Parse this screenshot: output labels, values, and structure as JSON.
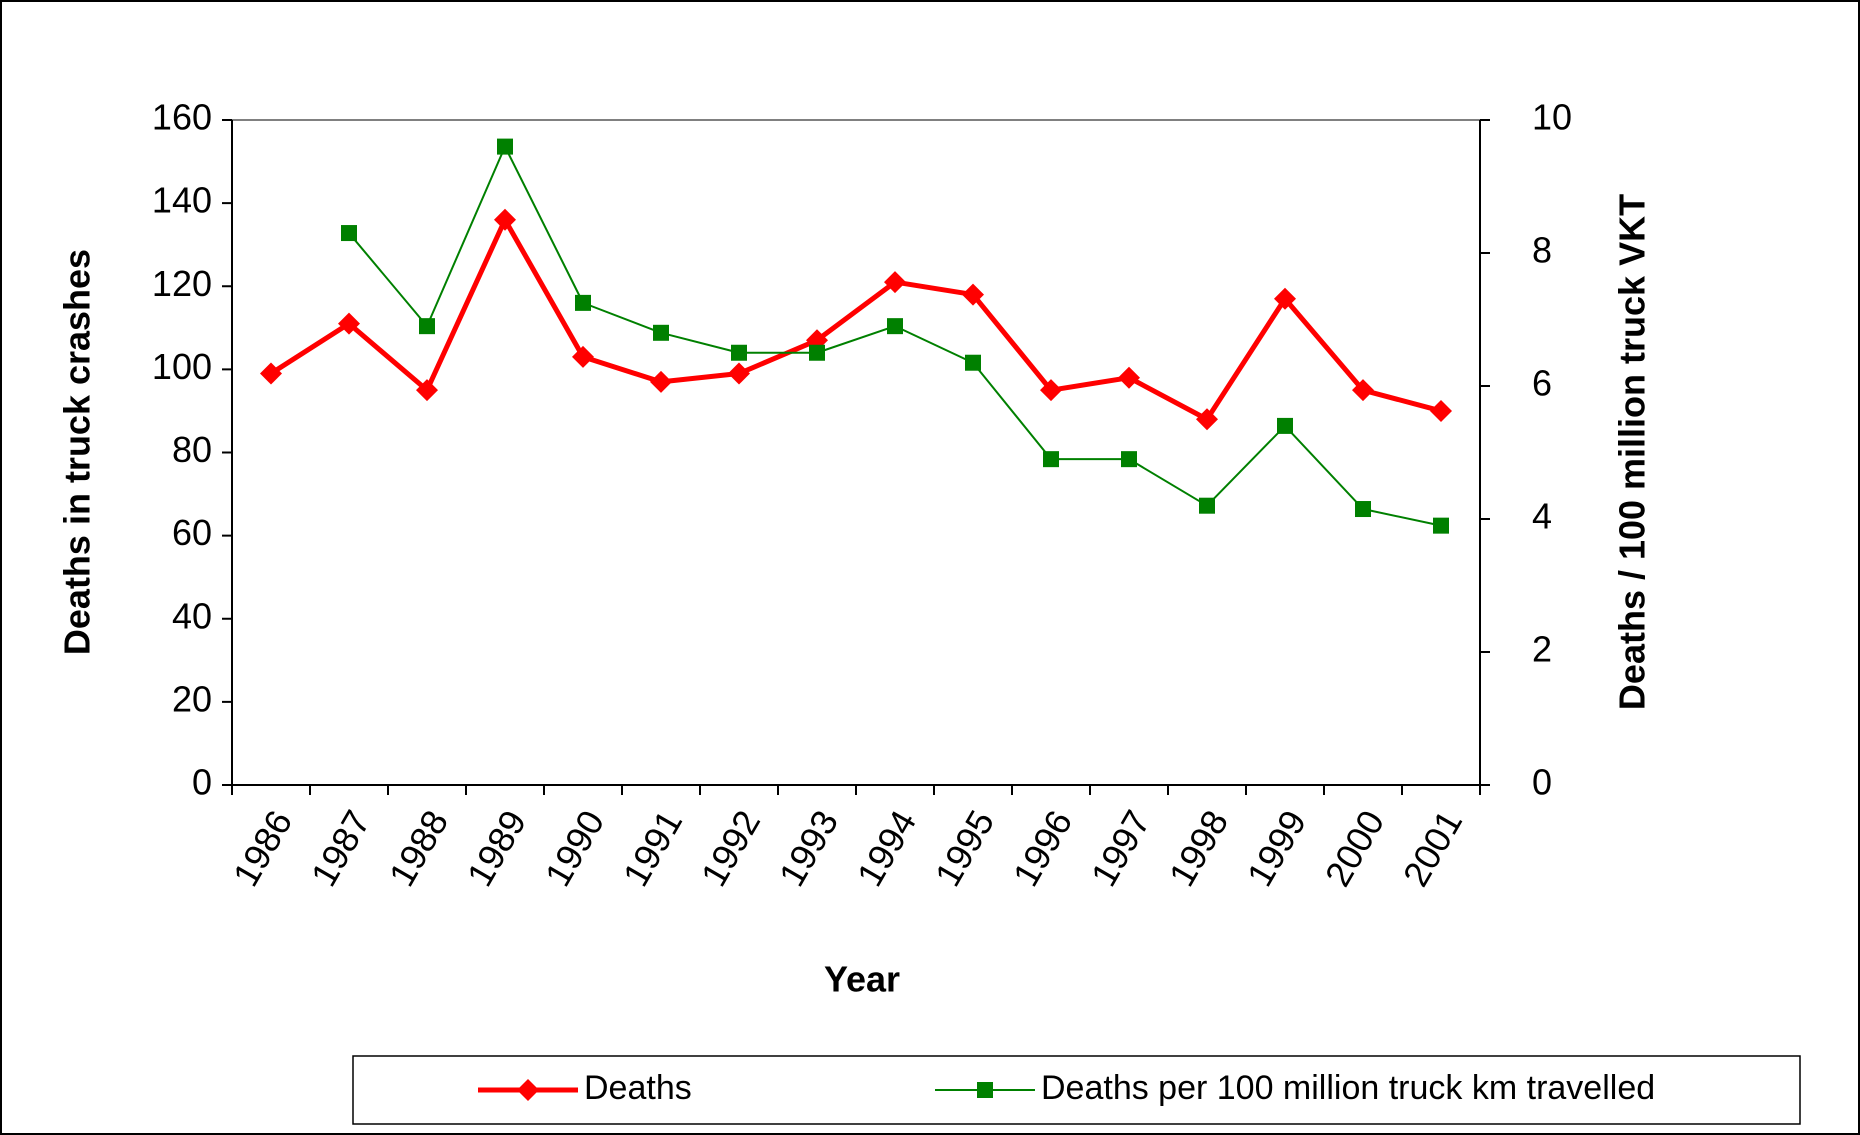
{
  "chart_data": {
    "type": "line",
    "x_label": "Year",
    "y_label": "Deaths in truck crashes",
    "y2_label": "Deaths / 100 million truck VKT",
    "categories": [
      "1986",
      "1987",
      "1988",
      "1989",
      "1990",
      "1991",
      "1992",
      "1993",
      "1994",
      "1995",
      "1996",
      "1997",
      "1998",
      "1999",
      "2000",
      "2001"
    ],
    "series": [
      {
        "name": "Deaths",
        "color": "#ff0000",
        "marker": "diamond",
        "axis": "y",
        "values": [
          99,
          111,
          95,
          136,
          103,
          97,
          99,
          107,
          121,
          118,
          95,
          98,
          88,
          117,
          95,
          90
        ]
      },
      {
        "name": "Deaths per 100 million truck km travelled",
        "color": "#008000",
        "marker": "square",
        "axis": "y2",
        "values": [
          null,
          8.3,
          6.9,
          9.6,
          7.25,
          6.8,
          6.5,
          6.5,
          6.9,
          6.35,
          4.9,
          4.9,
          4.2,
          5.4,
          4.15,
          3.9
        ]
      }
    ],
    "ylim": [
      0,
      160
    ],
    "yticks": [
      0,
      20,
      40,
      60,
      80,
      100,
      120,
      140,
      160
    ],
    "y2lim": [
      0,
      10
    ],
    "y2ticks": [
      0,
      2,
      4,
      6,
      8,
      10
    ],
    "grid": false,
    "legend": "bottom"
  }
}
